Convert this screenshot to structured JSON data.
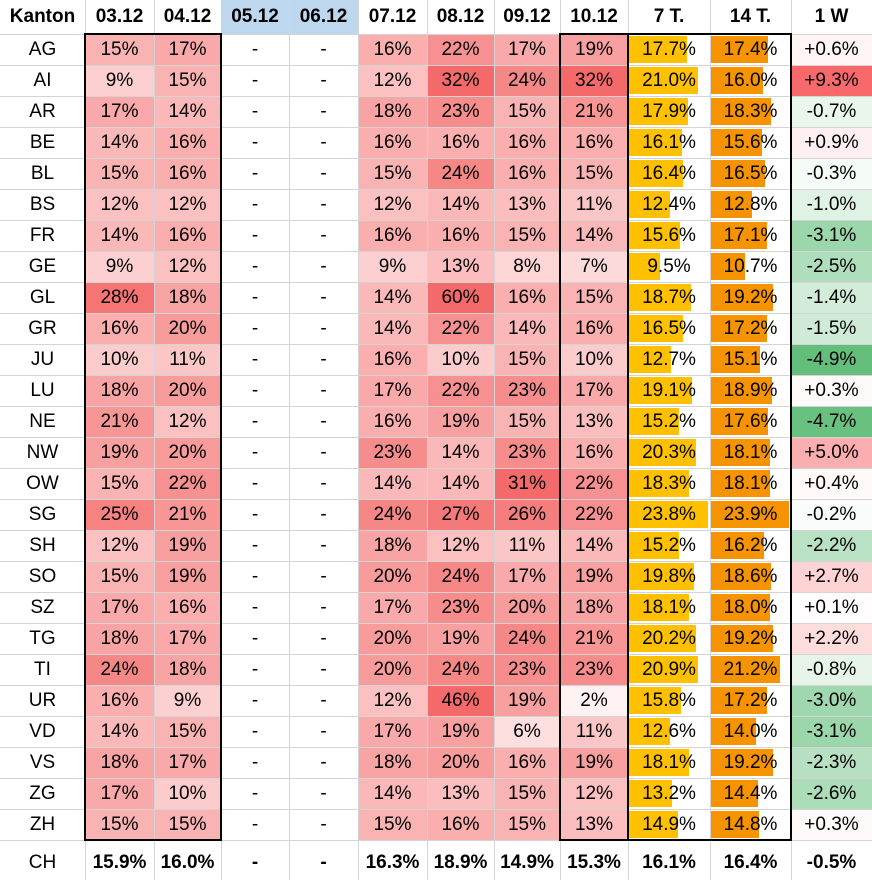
{
  "header": [
    "Kanton",
    "03.12",
    "04.12",
    "05.12",
    "06.12",
    "07.12",
    "08.12",
    "09.12",
    "10.12",
    "7 T.",
    "14 T.",
    "1 W"
  ],
  "highlighted_header_columns": [
    "05.12",
    "06.12"
  ],
  "colors": {
    "header_highlight": "#bdd7ee",
    "bar_7t": "#ffc000",
    "bar_14t": "#f59300",
    "heat_low": "#fff2f2",
    "heat_high": "#f46a6a",
    "change_positive": "#f8696b",
    "change_negative": "#63be7b"
  },
  "scales": {
    "bar_max_percent": 24.5
  },
  "rows": [
    {
      "kanton": "AG",
      "vals": [
        "15%",
        "17%",
        "-",
        "-",
        "16%",
        "22%",
        "17%",
        "19%",
        "17.7%",
        "17.4%",
        "+0.6%"
      ]
    },
    {
      "kanton": "AI",
      "vals": [
        "9%",
        "15%",
        "-",
        "-",
        "12%",
        "32%",
        "24%",
        "32%",
        "21.0%",
        "16.0%",
        "+9.3%"
      ]
    },
    {
      "kanton": "AR",
      "vals": [
        "17%",
        "14%",
        "-",
        "-",
        "18%",
        "23%",
        "15%",
        "21%",
        "17.9%",
        "18.3%",
        "-0.7%"
      ]
    },
    {
      "kanton": "BE",
      "vals": [
        "14%",
        "16%",
        "-",
        "-",
        "16%",
        "16%",
        "16%",
        "16%",
        "16.1%",
        "15.6%",
        "+0.9%"
      ]
    },
    {
      "kanton": "BL",
      "vals": [
        "15%",
        "16%",
        "-",
        "-",
        "15%",
        "24%",
        "16%",
        "15%",
        "16.4%",
        "16.5%",
        "-0.3%"
      ]
    },
    {
      "kanton": "BS",
      "vals": [
        "12%",
        "12%",
        "-",
        "-",
        "12%",
        "14%",
        "13%",
        "11%",
        "12.4%",
        "12.8%",
        "-1.0%"
      ]
    },
    {
      "kanton": "FR",
      "vals": [
        "14%",
        "16%",
        "-",
        "-",
        "16%",
        "16%",
        "15%",
        "14%",
        "15.6%",
        "17.1%",
        "-3.1%"
      ]
    },
    {
      "kanton": "GE",
      "vals": [
        "9%",
        "12%",
        "-",
        "-",
        "9%",
        "13%",
        "8%",
        "7%",
        "9.5%",
        "10.7%",
        "-2.5%"
      ]
    },
    {
      "kanton": "GL",
      "vals": [
        "28%",
        "18%",
        "-",
        "-",
        "14%",
        "60%",
        "16%",
        "15%",
        "18.7%",
        "19.2%",
        "-1.4%"
      ]
    },
    {
      "kanton": "GR",
      "vals": [
        "16%",
        "20%",
        "-",
        "-",
        "14%",
        "22%",
        "14%",
        "16%",
        "16.5%",
        "17.2%",
        "-1.5%"
      ]
    },
    {
      "kanton": "JU",
      "vals": [
        "10%",
        "11%",
        "-",
        "-",
        "16%",
        "10%",
        "15%",
        "10%",
        "12.7%",
        "15.1%",
        "-4.9%"
      ]
    },
    {
      "kanton": "LU",
      "vals": [
        "18%",
        "20%",
        "-",
        "-",
        "17%",
        "22%",
        "23%",
        "17%",
        "19.1%",
        "18.9%",
        "+0.3%"
      ]
    },
    {
      "kanton": "NE",
      "vals": [
        "21%",
        "12%",
        "-",
        "-",
        "16%",
        "19%",
        "15%",
        "13%",
        "15.2%",
        "17.6%",
        "-4.7%"
      ]
    },
    {
      "kanton": "NW",
      "vals": [
        "19%",
        "20%",
        "-",
        "-",
        "23%",
        "14%",
        "23%",
        "16%",
        "20.3%",
        "18.1%",
        "+5.0%"
      ]
    },
    {
      "kanton": "OW",
      "vals": [
        "15%",
        "22%",
        "-",
        "-",
        "14%",
        "14%",
        "31%",
        "22%",
        "18.3%",
        "18.1%",
        "+0.4%"
      ]
    },
    {
      "kanton": "SG",
      "vals": [
        "25%",
        "21%",
        "-",
        "-",
        "24%",
        "27%",
        "26%",
        "22%",
        "23.8%",
        "23.9%",
        "-0.2%"
      ]
    },
    {
      "kanton": "SH",
      "vals": [
        "12%",
        "19%",
        "-",
        "-",
        "18%",
        "12%",
        "11%",
        "14%",
        "15.2%",
        "16.2%",
        "-2.2%"
      ]
    },
    {
      "kanton": "SO",
      "vals": [
        "15%",
        "19%",
        "-",
        "-",
        "20%",
        "24%",
        "17%",
        "19%",
        "19.8%",
        "18.6%",
        "+2.7%"
      ]
    },
    {
      "kanton": "SZ",
      "vals": [
        "17%",
        "16%",
        "-",
        "-",
        "17%",
        "23%",
        "20%",
        "18%",
        "18.1%",
        "18.0%",
        "+0.1%"
      ]
    },
    {
      "kanton": "TG",
      "vals": [
        "18%",
        "17%",
        "-",
        "-",
        "20%",
        "19%",
        "24%",
        "21%",
        "20.2%",
        "19.2%",
        "+2.2%"
      ]
    },
    {
      "kanton": "TI",
      "vals": [
        "24%",
        "18%",
        "-",
        "-",
        "20%",
        "24%",
        "23%",
        "23%",
        "20.9%",
        "21.2%",
        "-0.8%"
      ]
    },
    {
      "kanton": "UR",
      "vals": [
        "16%",
        "9%",
        "-",
        "-",
        "12%",
        "46%",
        "19%",
        "2%",
        "15.8%",
        "17.2%",
        "-3.0%"
      ]
    },
    {
      "kanton": "VD",
      "vals": [
        "14%",
        "15%",
        "-",
        "-",
        "17%",
        "19%",
        "6%",
        "11%",
        "12.6%",
        "14.0%",
        "-3.1%"
      ]
    },
    {
      "kanton": "VS",
      "vals": [
        "18%",
        "17%",
        "-",
        "-",
        "18%",
        "20%",
        "16%",
        "19%",
        "18.1%",
        "19.2%",
        "-2.3%"
      ]
    },
    {
      "kanton": "ZG",
      "vals": [
        "17%",
        "10%",
        "-",
        "-",
        "14%",
        "13%",
        "15%",
        "12%",
        "13.2%",
        "14.4%",
        "-2.6%"
      ]
    },
    {
      "kanton": "ZH",
      "vals": [
        "15%",
        "15%",
        "-",
        "-",
        "15%",
        "16%",
        "15%",
        "13%",
        "14.9%",
        "14.8%",
        "+0.3%"
      ]
    }
  ],
  "total": {
    "kanton": "CH",
    "vals": [
      "15.9%",
      "16.0%",
      "-",
      "-",
      "16.3%",
      "18.9%",
      "14.9%",
      "15.3%",
      "16.1%",
      "16.4%",
      "-0.5%"
    ]
  }
}
